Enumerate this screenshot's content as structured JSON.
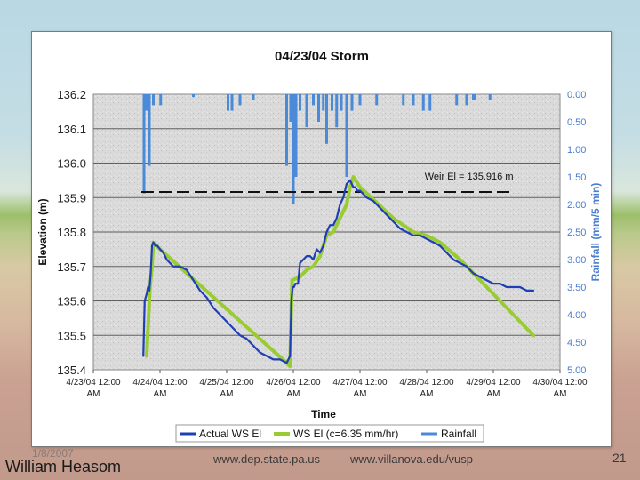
{
  "slide": {
    "date": "1/8/2007",
    "author": "William Heasom",
    "url1": "www.dep.state.pa.us",
    "url2": "www.villanova.edu/vusp",
    "page": "21"
  },
  "colors": {
    "actual": "#1f3fb5",
    "model": "#99cc33",
    "rainfall": "#4a8ad8",
    "weir": "#111111",
    "grid": "#606060"
  },
  "chart_data": {
    "type": "line",
    "title": "04/23/04 Storm",
    "xlabel": "Time",
    "ylabel": "Elevation (m)",
    "y2label": "Rainfall (mm/5 min)",
    "ylim": [
      135.4,
      136.2
    ],
    "y2lim": [
      0,
      5
    ],
    "y2_inverted": true,
    "xlim": [
      "4/23/04 12:00 AM",
      "4/30/04 12:00 AM"
    ],
    "grid": true,
    "legend_position": "bottom",
    "y_ticks": [
      "135.4",
      "135.5",
      "135.6",
      "135.7",
      "135.8",
      "135.9",
      "136.0",
      "136.1",
      "136.2"
    ],
    "y2_ticks": [
      "0.00",
      "0.50",
      "1.00",
      "1.50",
      "2.00",
      "2.50",
      "3.00",
      "3.50",
      "4.00",
      "4.50",
      "5.00"
    ],
    "x_ticks": [
      {
        "line1": "4/23/04 12:00",
        "line2": "AM"
      },
      {
        "line1": "4/24/04 12:00",
        "line2": "AM"
      },
      {
        "line1": "4/25/04 12:00",
        "line2": "AM"
      },
      {
        "line1": "4/26/04 12:00",
        "line2": "AM"
      },
      {
        "line1": "4/27/04 12:00",
        "line2": "AM"
      },
      {
        "line1": "4/28/04 12:00",
        "line2": "AM"
      },
      {
        "line1": "4/29/04 12:00",
        "line2": "AM"
      },
      {
        "line1": "4/30/04 12:00",
        "line2": "AM"
      }
    ],
    "annotation": "Weir El = 135.916 m",
    "weir_elevation": 135.916,
    "series": [
      {
        "name": "Actual WS El",
        "axis": "left",
        "x_days": [
          0.75,
          0.77,
          0.8,
          0.82,
          0.84,
          0.86,
          0.88,
          0.9,
          0.93,
          0.96,
          1.0,
          1.05,
          1.1,
          1.2,
          1.3,
          1.4,
          1.5,
          1.6,
          1.7,
          1.8,
          1.9,
          2.0,
          2.1,
          2.2,
          2.3,
          2.4,
          2.5,
          2.6,
          2.7,
          2.8,
          2.9,
          2.95,
          2.97,
          2.99,
          3.01,
          3.03,
          3.07,
          3.1,
          3.15,
          3.2,
          3.25,
          3.3,
          3.35,
          3.4,
          3.45,
          3.5,
          3.55,
          3.6,
          3.65,
          3.7,
          3.75,
          3.8,
          3.85,
          3.9,
          3.93,
          3.96,
          4.0,
          4.05,
          4.1,
          4.2,
          4.3,
          4.4,
          4.5,
          4.6,
          4.7,
          4.8,
          4.9,
          5.0,
          5.1,
          5.2,
          5.3,
          5.4,
          5.5,
          5.6,
          5.7,
          5.8,
          5.9,
          6.0,
          6.1,
          6.2,
          6.3,
          6.4,
          6.5,
          6.6
        ],
        "values": [
          135.44,
          135.6,
          135.62,
          135.64,
          135.63,
          135.68,
          135.76,
          135.77,
          135.76,
          135.76,
          135.75,
          135.74,
          135.72,
          135.7,
          135.7,
          135.69,
          135.66,
          135.63,
          135.61,
          135.58,
          135.56,
          135.54,
          135.52,
          135.5,
          135.49,
          135.47,
          135.45,
          135.44,
          135.43,
          135.43,
          135.42,
          135.44,
          135.6,
          135.64,
          135.64,
          135.65,
          135.65,
          135.71,
          135.72,
          135.73,
          135.73,
          135.72,
          135.75,
          135.74,
          135.76,
          135.8,
          135.82,
          135.82,
          135.84,
          135.88,
          135.9,
          135.94,
          135.95,
          135.93,
          135.93,
          135.92,
          135.92,
          135.91,
          135.9,
          135.89,
          135.87,
          135.85,
          135.83,
          135.81,
          135.8,
          135.79,
          135.79,
          135.78,
          135.77,
          135.76,
          135.74,
          135.72,
          135.71,
          135.7,
          135.68,
          135.67,
          135.66,
          135.65,
          135.65,
          135.64,
          135.64,
          135.64,
          135.63,
          135.63
        ]
      },
      {
        "name": "WS El (c=6.35 mm/hr)",
        "axis": "left",
        "x_days": [
          0.8,
          0.85,
          0.88,
          0.9,
          0.95,
          1.0,
          2.9,
          2.95,
          2.98,
          3.1,
          3.2,
          3.3,
          3.4,
          3.5,
          3.6,
          3.7,
          3.8,
          3.85,
          3.9,
          4.0,
          4.5,
          4.8,
          5.0,
          5.2,
          5.5,
          6.0,
          6.5,
          6.6
        ],
        "values": [
          135.44,
          135.64,
          135.7,
          135.77,
          135.76,
          135.75,
          135.42,
          135.41,
          135.66,
          135.67,
          135.69,
          135.7,
          135.73,
          135.79,
          135.8,
          135.84,
          135.88,
          135.93,
          135.96,
          135.93,
          135.84,
          135.8,
          135.79,
          135.77,
          135.72,
          135.62,
          135.52,
          135.5
        ]
      },
      {
        "name": "Rainfall",
        "axis": "right",
        "x_days": [
          0.76,
          0.8,
          0.84,
          0.9,
          1.01,
          1.5,
          2.02,
          2.08,
          2.2,
          2.4,
          2.9,
          2.96,
          3.0,
          3.04,
          3.1,
          3.2,
          3.3,
          3.38,
          3.45,
          3.5,
          3.58,
          3.65,
          3.72,
          3.8,
          3.88,
          4.0,
          4.25,
          4.65,
          4.8,
          4.95,
          5.05,
          5.45,
          5.6,
          5.7,
          5.72,
          5.95
        ],
        "values": [
          1.8,
          0.3,
          1.3,
          0.2,
          0.2,
          0.05,
          0.3,
          0.3,
          0.2,
          0.1,
          1.3,
          0.5,
          2.0,
          1.5,
          0.3,
          0.6,
          0.2,
          0.5,
          0.3,
          0.9,
          0.3,
          0.6,
          0.3,
          1.5,
          0.3,
          0.2,
          0.2,
          0.2,
          0.2,
          0.3,
          0.3,
          0.2,
          0.2,
          0.1,
          0.1,
          0.1
        ]
      }
    ]
  }
}
